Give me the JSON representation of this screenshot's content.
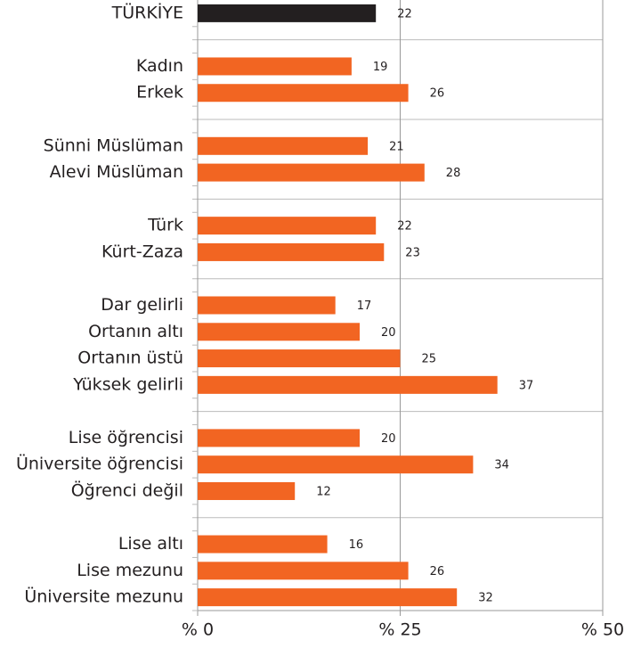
{
  "chart_data": {
    "type": "hbar",
    "categories": [
      "TÜRKİYE",
      null,
      "Kadın",
      "Erkek",
      null,
      "Sünni Müslüman",
      "Alevi Müslüman",
      null,
      "Türk",
      "Kürt-Zaza",
      null,
      "Dar gelirli",
      "Ortanın altı",
      "Ortanın üstü",
      "Yüksek gelirli",
      null,
      "Lise öğrencisi",
      "Üniversite öğrencisi",
      "Öğrenci değil",
      null,
      "Lise altı",
      "Lise mezunu",
      "Üniversite mezunu"
    ],
    "values": [
      22,
      null,
      19,
      26,
      null,
      21,
      28,
      null,
      22,
      23,
      null,
      17,
      20,
      25,
      37,
      null,
      20,
      34,
      12,
      null,
      16,
      26,
      32
    ],
    "colors": [
      "#231f20",
      null,
      "#f26522",
      "#f26522",
      null,
      "#f26522",
      "#f26522",
      null,
      "#f26522",
      "#f26522",
      null,
      "#f26522",
      "#f26522",
      "#f26522",
      "#f26522",
      null,
      "#f26522",
      "#f26522",
      "#f26522",
      null,
      "#f26522",
      "#f26522",
      "#f26522"
    ],
    "xlim": [
      0,
      50
    ],
    "xticks": [
      {
        "value": 0,
        "label": "% 0"
      },
      {
        "value": 25,
        "label": "% 25"
      },
      {
        "value": 50,
        "label": "% 50"
      }
    ],
    "grid": true
  }
}
